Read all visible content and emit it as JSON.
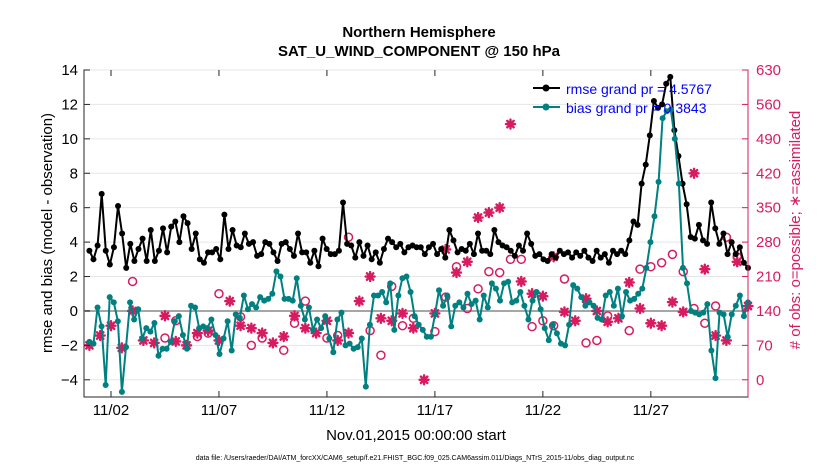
{
  "chart_data": {
    "type": "line",
    "title_line1": "Northern Hemisphere",
    "title_line2": "SAT_U_WIND_COMPONENT @ 150 hPa",
    "ylabel": "rmse and bias (model - observation)",
    "ylabel_right": "# of obs: o=possible; ∗=assimilated",
    "xlabel": "Nov.01,2015 00:00:00 start",
    "footer": "data file: /Users/raeder/DAI/ATM_forcXX/CAM6_setup/f.e21.FHIST_BGC.f09_025.CAM6assim.011/Diags_NTrS_2015-11/obs_diag_output.nc",
    "ylim": [
      -5,
      14
    ],
    "yticks": [
      "−4",
      "−2",
      "0",
      "2",
      "4",
      "6",
      "8",
      "10",
      "12",
      "14"
    ],
    "yticks_right": [
      "0",
      "70",
      "140",
      "210",
      "280",
      "350",
      "420",
      "490",
      "560",
      "630"
    ],
    "xlim": [
      0.75,
      31.5
    ],
    "xticks": [
      {
        "x": 2,
        "label": "11/02"
      },
      {
        "x": 7,
        "label": "11/07"
      },
      {
        "x": 12,
        "label": "11/12"
      },
      {
        "x": 17,
        "label": "11/17"
      },
      {
        "x": 22,
        "label": "11/22"
      },
      {
        "x": 27,
        "label": "11/27"
      }
    ],
    "series": [
      {
        "name": "rmse",
        "legend": "rmse grand pr = 4.5767",
        "color": "#000000",
        "values": [
          3.5,
          3.0,
          3.8,
          6.8,
          3.5,
          2.7,
          3.7,
          6.1,
          4.5,
          2.5,
          3.9,
          2.9,
          3.6,
          4.2,
          2.9,
          4.7,
          2.9,
          3.5,
          4.8,
          3.4,
          4.9,
          5.2,
          4.0,
          5.5,
          5.1,
          3.6,
          4.5,
          3.0,
          2.8,
          3.4,
          3.4,
          3.6,
          3.0,
          5.6,
          3.6,
          4.7,
          3.8,
          3.7,
          4.5,
          3.9,
          4.0,
          3.2,
          3.3,
          4.0,
          3.9,
          3.4,
          2.9,
          3.9,
          4.0,
          3.6,
          3.2,
          4.5,
          3.4,
          3.4,
          2.8,
          3.5,
          2.6,
          4.2,
          3.6,
          3.3,
          3.3,
          3.5,
          6.3,
          3.9,
          3.8,
          3.1,
          4.0,
          3.2,
          3.8,
          3.0,
          3.4,
          2.8,
          3.6,
          4.2,
          4.0,
          3.7,
          3.9,
          3.4,
          3.7,
          3.8,
          3.7,
          3.7,
          3.3,
          3.7,
          3.9,
          3.3,
          3.6,
          3.1,
          4.7,
          4.1,
          3.4,
          3.6,
          3.5,
          3.9,
          3.3,
          4.5,
          3.5,
          3.5,
          3.3,
          4.7,
          4.0,
          3.8,
          3.7,
          3.5,
          3.2,
          3.8,
          3.5,
          4.5,
          3.9,
          3.2,
          3.3,
          3.0,
          2.9,
          3.3,
          3.1,
          3.5,
          3.3,
          3.4,
          3.1,
          3.4,
          3.2,
          3.5,
          3.1,
          2.9,
          3.5,
          3.1,
          3.3,
          2.8,
          3.5,
          3.3,
          3.5,
          3.3,
          4.1,
          5.2,
          5.0,
          7.4,
          8.5,
          10.2,
          12.2,
          11.8,
          12.0,
          13.2,
          13.6,
          10.5,
          9.0,
          7.4,
          6.2,
          4.3,
          4.2,
          5.0,
          4.1,
          3.9,
          6.3,
          4.8,
          3.9,
          4.5,
          3.3,
          4.0,
          3.3,
          3.7,
          2.8,
          2.5
        ]
      },
      {
        "name": "bias",
        "legend": "bias grand pr = 0.3843",
        "color": "#008080",
        "values": [
          -1.8,
          -1.9,
          0.2,
          -0.9,
          -4.3,
          0.8,
          0.5,
          -0.6,
          -4.7,
          -2.1,
          0.5,
          -0.5,
          0.1,
          -1.6,
          -1.0,
          -1.2,
          -0.7,
          -2.6,
          -2.2,
          -2.2,
          -1.8,
          -0.6,
          -0.3,
          -1.4,
          -2.2,
          0.3,
          0.2,
          -1.0,
          -0.9,
          -1.0,
          -0.5,
          -1.4,
          -2.5,
          -1.6,
          -0.6,
          -2.3,
          -0.2,
          -0.4,
          0.9,
          0.1,
          0.4,
          0.2,
          0.8,
          0.6,
          0.7,
          1.0,
          2.3,
          2.0,
          0.7,
          0.7,
          0.6,
          1.9,
          0.3,
          -0.5,
          0.2,
          -1.1,
          -0.5,
          -1.0,
          -0.3,
          -1.6,
          -2.4,
          -0.5,
          -0.1,
          -2.0,
          -1.9,
          -2.2,
          -2.1,
          -1.6,
          -4.4,
          -0.8,
          0.9,
          0.9,
          1.1,
          0.5,
          1.6,
          -1.1,
          0.9,
          1.9,
          2.0,
          1.1,
          -0.3,
          -0.8,
          -1.1,
          -1.5,
          -1.5,
          -0.2,
          1.2,
          0.3,
          0.9,
          -0.9,
          0.3,
          0.5,
          0.2,
          1.0,
          0.4,
          0.6,
          -0.5,
          0.9,
          0.2,
          1.6,
          1.3,
          0.6,
          1.6,
          1.7,
          0.5,
          0.6,
          1.1,
          0.3,
          -0.5,
          0.6,
          1.1,
          0.1,
          -1.0,
          -1.7,
          -0.8,
          -1.3,
          -1.9,
          -2.0,
          -0.8,
          1.5,
          1.3,
          0.8,
          0.3,
          0.5,
          0.3,
          -0.4,
          -0.5,
          0.9,
          1.1,
          0.3,
          1.3,
          -0.3,
          1.1,
          0.6,
          0.7,
          1.0,
          1.3,
          2.5,
          4.0,
          5.5,
          7.5,
          11.2,
          11.6,
          11.7,
          10.0,
          7.4,
          2.5,
          1.6,
          0.0,
          -0.1,
          -0.2,
          -0.1,
          0.4,
          -2.3,
          -3.9,
          -0.1,
          -0.2,
          -1.5,
          -0.2,
          0.3,
          0.9,
          -0.3,
          0.5
        ]
      }
    ],
    "nobs_possible": {
      "x": [
        3,
        4.5,
        5,
        6,
        6.5,
        7,
        8,
        8.5,
        9,
        10,
        10.5,
        11,
        12,
        12.5,
        13,
        14,
        14.5,
        15,
        15.5,
        16,
        17,
        17.5,
        18,
        18.5,
        19,
        19.5,
        20,
        20.5,
        21,
        21.5,
        22,
        22.5,
        23,
        24,
        24.5,
        25,
        26,
        26.5,
        27,
        27.5,
        28,
        28.5,
        29,
        29.5,
        30,
        30.5,
        31
      ],
      "y": [
        200,
        85,
        120,
        88,
        95,
        175,
        128,
        70,
        85,
        60,
        115,
        160,
        85,
        90,
        290,
        100,
        50,
        190,
        110,
        125,
        98,
        168,
        230,
        145,
        185,
        220,
        218,
        245,
        245,
        108,
        120,
        110,
        205,
        75,
        80,
        130,
        100,
        225,
        230,
        238,
        255,
        220,
        145,
        115,
        150,
        290,
        250
      ]
    },
    "nobs_assimilated": {
      "x": [
        1,
        1.5,
        2,
        2.5,
        3,
        3.5,
        4,
        4.5,
        5,
        5.5,
        6,
        6.5,
        7,
        7.5,
        8,
        8.5,
        9,
        9.5,
        10,
        10.5,
        11,
        11.5,
        12,
        12.5,
        13,
        13.5,
        14,
        14.5,
        15,
        15.5,
        16,
        16.5,
        17,
        17.5,
        18,
        18.5,
        19,
        19.5,
        20,
        20.5,
        21,
        21.5,
        22,
        22.5,
        23,
        23.5,
        24,
        24.5,
        25,
        25.5,
        26,
        26.5,
        27,
        27.5,
        28,
        28.5,
        29,
        29.5,
        30,
        30.5,
        31,
        31.5
      ],
      "y": [
        70,
        90,
        110,
        65,
        140,
        80,
        75,
        130,
        78,
        70,
        95,
        100,
        80,
        160,
        110,
        105,
        95,
        75,
        88,
        130,
        105,
        95,
        120,
        80,
        95,
        160,
        210,
        125,
        120,
        135,
        105,
        0,
        135,
        265,
        218,
        240,
        330,
        340,
        350,
        520,
        200,
        175,
        170,
        250,
        138,
        120,
        165,
        140,
        118,
        125,
        198,
        145,
        115,
        110,
        158,
        138,
        420,
        225,
        90,
        80,
        240,
        150
      ]
    }
  }
}
